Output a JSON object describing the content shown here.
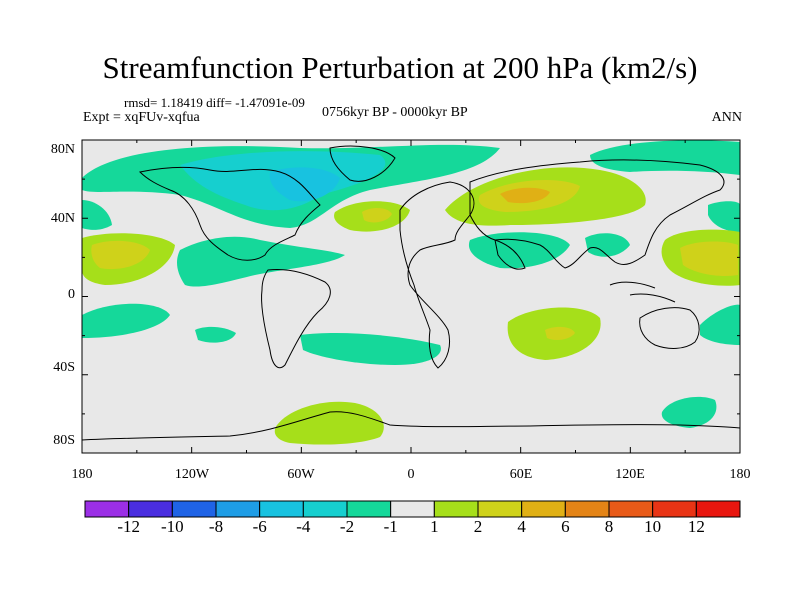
{
  "title": "Streamfunction Perturbation at 200 hPa (km2/s)",
  "stats": "rmsd= 1.18419 diff= -1.47091e-09",
  "experiment": "Expt = xqFUv-xqfua",
  "period": "0756kyr BP - 0000kyr BP",
  "season": "ANN",
  "lat_ticks": [
    "80N",
    "40N",
    "0",
    "40S",
    "80S"
  ],
  "lon_ticks": [
    "180",
    "120W",
    "60W",
    "0",
    "60E",
    "120E",
    "180"
  ],
  "colorbar": {
    "labels": [
      "-12",
      "-10",
      "-8",
      "-6",
      "-4",
      "-2",
      "-1",
      "1",
      "2",
      "4",
      "6",
      "8",
      "10",
      "12"
    ],
    "colors": [
      "#9b2fe6",
      "#4a2ee0",
      "#1f63e6",
      "#1e9de6",
      "#18c2e0",
      "#16cfcf",
      "#15d89a",
      "#e8e8e8",
      "#a6df1a",
      "#cfd21a",
      "#e0b015",
      "#e48416",
      "#e85a18",
      "#e83415",
      "#e8160f"
    ]
  },
  "map_colors": {
    "background": "#e8e8e8",
    "pos_1": "#a6df1a",
    "pos_2": "#cfd21a",
    "pos_4": "#e0b015",
    "neg_1": "#15d89a",
    "neg_2": "#16cfcf",
    "neg_4": "#18c2e0"
  }
}
